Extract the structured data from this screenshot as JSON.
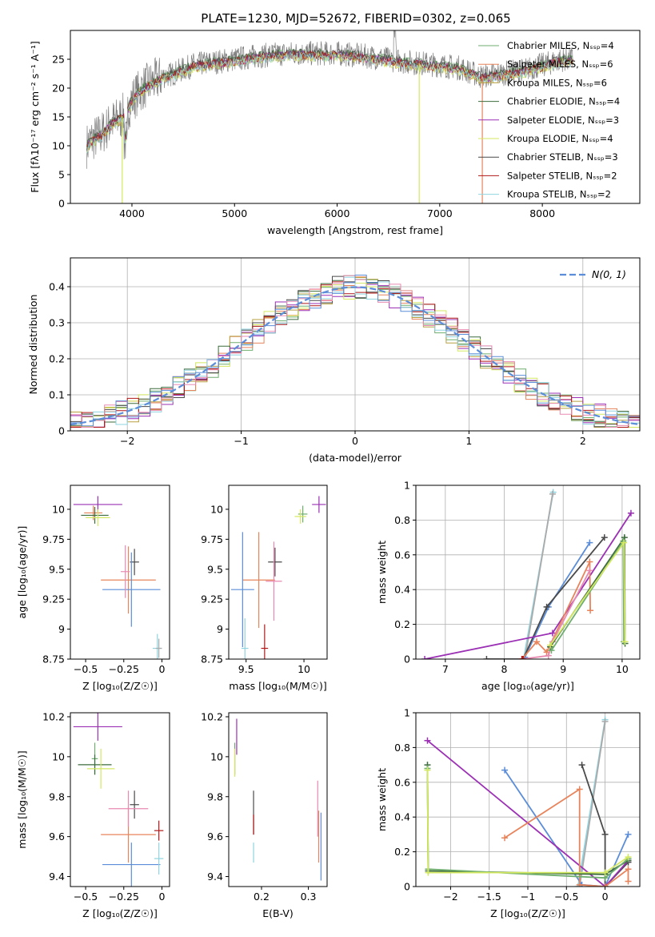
{
  "figure": {
    "title": "PLATE=1230, MJD=52672, FIBERID=0302, z=0.065"
  },
  "colors": {
    "Chabrier MILES": "#6fae6f",
    "Salpeter MILES": "#e8845c",
    "Kroupa MILES": "#b8a040",
    "Chabrier ELODIE": "#3d6b3d",
    "Salpeter ELODIE": "#9b30b5",
    "Kroupa ELODIE": "#d4e860",
    "Chabrier STELIB": "#4a4a4a",
    "Salpeter STELIB": "#b01818",
    "Kroupa STELIB": "#8fd4e0",
    "gaussian": "#5b8dd9"
  },
  "chart_data": [
    {
      "id": "spectrum",
      "type": "line",
      "xlabel": "wavelength [Angstrom, rest frame]",
      "ylabel": "Flux [fλ10⁻¹⁷ erg cm⁻² s⁻¹ A⁻¹]",
      "xlim": [
        3400,
        8950
      ],
      "ylim": [
        0,
        30
      ],
      "xticks": [
        4000,
        5000,
        6000,
        7000,
        8000
      ],
      "yticks": [
        0,
        5,
        10,
        15,
        20,
        25
      ],
      "legend_position": "top-right",
      "continuum": {
        "x": [
          3560,
          3600,
          3700,
          3800,
          3900,
          3950,
          4000,
          4100,
          4200,
          4300,
          4400,
          4600,
          4800,
          5000,
          5200,
          5500,
          5800,
          6000,
          6300,
          6500,
          6700,
          7000,
          7200,
          7400,
          7600,
          7800,
          8000,
          8200,
          8300
        ],
        "y": [
          10,
          11,
          12,
          14,
          15,
          16,
          18,
          20,
          21,
          22,
          22.5,
          24,
          24.5,
          25,
          25.5,
          26,
          26,
          26,
          25.5,
          25,
          24.5,
          24,
          23.5,
          22,
          22.5,
          23,
          24,
          25,
          25
        ]
      },
      "series": [
        {
          "name": "Chabrier MILES, N_SSP=4",
          "color": "#6fae6f"
        },
        {
          "name": "Salpeter MILES, N_SSP=6",
          "color": "#e8845c"
        },
        {
          "name": "Kroupa MILES, N_SSP=6",
          "color": "#b8a040"
        },
        {
          "name": "Chabrier ELODIE, N_SSP=4",
          "color": "#3d6b3d"
        },
        {
          "name": "Salpeter ELODIE, N_SSP=3",
          "color": "#9b30b5"
        },
        {
          "name": "Kroupa ELODIE, N_SSP=4",
          "color": "#d4e860"
        },
        {
          "name": "Chabrier STELIB, N_SSP=3",
          "color": "#4a4a4a"
        },
        {
          "name": "Salpeter STELIB, N_SSP=2",
          "color": "#b01818"
        },
        {
          "name": "Kroupa STELIB, N_SSP=2",
          "color": "#8fd4e0"
        }
      ],
      "dropouts": [
        {
          "x": 3905,
          "color": "#d4e860"
        },
        {
          "x": 6800,
          "color": "#d4e860"
        },
        {
          "x": 7415,
          "color": "#e8845c"
        }
      ]
    },
    {
      "id": "residuals",
      "type": "line",
      "xlabel": "(data-model)/error",
      "ylabel": "Normed distribution",
      "xlim": [
        -2.5,
        2.5
      ],
      "ylim": [
        0,
        0.48
      ],
      "xticks": [
        -2,
        -1,
        0,
        1,
        2
      ],
      "yticks": [
        0.0,
        0.1,
        0.2,
        0.3,
        0.4
      ],
      "grid": true,
      "legend": "N(0, 1)",
      "legend_position": "top-right",
      "bin_width": 0.1,
      "bin_start": -2.5,
      "base_heights": [
        0.02,
        0.025,
        0.03,
        0.035,
        0.045,
        0.05,
        0.055,
        0.06,
        0.07,
        0.08,
        0.09,
        0.1,
        0.11,
        0.125,
        0.14,
        0.155,
        0.17,
        0.185,
        0.2,
        0.225,
        0.25,
        0.27,
        0.29,
        0.31,
        0.33,
        0.35,
        0.36,
        0.37,
        0.38,
        0.39,
        0.395,
        0.4,
        0.4,
        0.4,
        0.398,
        0.395,
        0.39,
        0.385,
        0.375,
        0.365,
        0.35,
        0.335,
        0.32,
        0.3,
        0.28,
        0.26,
        0.24,
        0.22,
        0.2,
        0.18,
        0.165,
        0.15,
        0.135,
        0.12,
        0.105,
        0.09,
        0.08,
        0.07,
        0.06,
        0.05,
        0.045,
        0.04,
        0.035,
        0.03,
        0.027,
        0.024,
        0.022,
        0.02,
        0.018,
        0.016,
        0.015,
        0.014,
        0.012,
        0.012,
        0.012,
        0.012,
        0.012,
        0.012,
        0.012,
        0.012,
        0.012,
        0.012,
        0.012,
        0.012,
        0.012,
        0.012,
        0.012,
        0.012,
        0.012,
        0.012,
        0.012,
        0.012,
        0.012,
        0.012,
        0.012,
        0.012,
        0.012,
        0.012,
        0.012,
        0.012
      ]
    },
    {
      "id": "age_vs_Z",
      "type": "scatter",
      "xlabel": "Z [log₁₀(Z/Z☉)]",
      "ylabel": "age  [log₁₀(age/yr)]",
      "xlim": [
        -0.6,
        0.05
      ],
      "ylim": [
        8.75,
        10.2
      ],
      "xticks": [
        -0.5,
        -0.25,
        0.0
      ],
      "yticks": [
        8.75,
        9.0,
        9.25,
        9.5,
        9.75,
        10.0
      ],
      "points": [
        {
          "x": -0.42,
          "y": 10.04,
          "dx": 0.16,
          "dy": 0.07,
          "color": "#9b30b5"
        },
        {
          "x": -0.45,
          "y": 9.97,
          "dx": 0.06,
          "dy": 0.06,
          "color": "#e8845c"
        },
        {
          "x": -0.44,
          "y": 9.95,
          "dx": 0.09,
          "dy": 0.07,
          "color": "#3d6b3d"
        },
        {
          "x": -0.42,
          "y": 9.93,
          "dx": 0.08,
          "dy": 0.07,
          "color": "#d4e860"
        },
        {
          "x": -0.22,
          "y": 9.41,
          "dx": 0.18,
          "dy": 0.28,
          "color": "#e8845c"
        },
        {
          "x": -0.18,
          "y": 9.56,
          "dx": 0.03,
          "dy": 0.11,
          "color": "#4a4a4a"
        },
        {
          "x": -0.2,
          "y": 9.33,
          "dx": 0.19,
          "dy": 0.31,
          "color": "#5b8dd9"
        },
        {
          "x": -0.24,
          "y": 9.48,
          "dx": 0.03,
          "dy": 0.22,
          "color": "#e88ab0"
        },
        {
          "x": -0.03,
          "y": 8.84,
          "dx": 0.03,
          "dy": 0.12,
          "color": "#8fd4e0"
        },
        {
          "x": -0.02,
          "y": 8.84,
          "dx": 0.02,
          "dy": 0.08,
          "color": "#aaaaaa"
        }
      ]
    },
    {
      "id": "age_vs_mass",
      "type": "scatter",
      "xlabel": "mass [log₁₀(M/M☉)]",
      "ylabel": "",
      "xlim": [
        9.35,
        10.2
      ],
      "ylim": [
        8.75,
        10.2
      ],
      "xticks": [
        9.5,
        10.0
      ],
      "yticks": [
        8.75,
        9.0,
        9.25,
        9.5,
        9.75,
        10.0
      ],
      "points": [
        {
          "x": 10.13,
          "y": 10.04,
          "dx": 0.06,
          "dy": 0.07,
          "color": "#9b30b5"
        },
        {
          "x": 9.99,
          "y": 9.96,
          "dx": 0.04,
          "dy": 0.07,
          "color": "#6fae6f"
        },
        {
          "x": 9.97,
          "y": 9.94,
          "dx": 0.05,
          "dy": 0.06,
          "color": "#d4e860"
        },
        {
          "x": 9.61,
          "y": 9.41,
          "dx": 0.14,
          "dy": 0.4,
          "color": "#e8845c"
        },
        {
          "x": 9.75,
          "y": 9.56,
          "dx": 0.06,
          "dy": 0.12,
          "color": "#4a4a4a"
        },
        {
          "x": 9.47,
          "y": 9.33,
          "dx": 0.1,
          "dy": 0.48,
          "color": "#5b8dd9"
        },
        {
          "x": 9.74,
          "y": 9.4,
          "dx": 0.07,
          "dy": 0.33,
          "color": "#e88ab0"
        },
        {
          "x": 9.66,
          "y": 8.84,
          "dx": 0.03,
          "dy": 0.2,
          "color": "#b01818"
        },
        {
          "x": 9.49,
          "y": 8.84,
          "dx": 0.03,
          "dy": 0.25,
          "color": "#8fd4e0"
        }
      ]
    },
    {
      "id": "weight_vs_age",
      "type": "line",
      "xlabel": "age  [log₁₀(age/yr)]",
      "ylabel": "mass weight",
      "xlim": [
        6.5,
        10.3
      ],
      "ylim": [
        0,
        1.0
      ],
      "xticks": [
        7,
        8,
        9,
        10
      ],
      "yticks": [
        0.0,
        0.2,
        0.4,
        0.6,
        0.8,
        1.0
      ],
      "grid": true,
      "series": [
        {
          "color": "#8fd4e0",
          "x": [
            8.33,
            8.83
          ],
          "y": [
            0.0,
            0.96
          ]
        },
        {
          "color": "#aaaaaa",
          "x": [
            8.35,
            8.82
          ],
          "y": [
            0.0,
            0.95
          ]
        },
        {
          "color": "#5b8dd9",
          "x": [
            8.35,
            8.75,
            9.45
          ],
          "y": [
            0.01,
            0.3,
            0.67
          ]
        },
        {
          "color": "#4a4a4a",
          "x": [
            7.7,
            8.32,
            8.72,
            9.7
          ],
          "y": [
            0.0,
            0.0,
            0.3,
            0.7
          ]
        },
        {
          "color": "#9b30b5",
          "x": [
            6.65,
            8.82,
            10.15
          ],
          "y": [
            0.0,
            0.15,
            0.84
          ]
        },
        {
          "color": "#e8845c",
          "x": [
            8.3,
            8.55,
            8.72,
            9.45,
            9.46
          ],
          "y": [
            0.0,
            0.1,
            0.04,
            0.56,
            0.28
          ]
        },
        {
          "color": "#e88ab0",
          "x": [
            8.3,
            8.75,
            8.82,
            9.45
          ],
          "y": [
            0.0,
            0.02,
            0.1,
            0.51
          ]
        },
        {
          "color": "#3d6b3d",
          "x": [
            8.78,
            10.04,
            10.05
          ],
          "y": [
            0.07,
            0.7,
            0.09
          ]
        },
        {
          "color": "#6fae6f",
          "x": [
            8.8,
            10.02,
            10.03
          ],
          "y": [
            0.05,
            0.68,
            0.1
          ]
        },
        {
          "color": "#d4e860",
          "x": [
            8.78,
            10.03,
            10.05
          ],
          "y": [
            0.08,
            0.67,
            0.1
          ]
        },
        {
          "color": "#b01818",
          "x": [
            8.3,
            8.32
          ],
          "y": [
            0.0,
            0.0
          ]
        }
      ]
    },
    {
      "id": "mass_vs_Z",
      "type": "scatter",
      "xlabel": "Z [log₁₀(Z/Z☉)]",
      "ylabel": "mass [log₁₀(M/M☉)]",
      "xlim": [
        -0.6,
        0.05
      ],
      "ylim": [
        9.35,
        10.22
      ],
      "xticks": [
        -0.5,
        -0.25,
        0.0
      ],
      "yticks": [
        9.4,
        9.6,
        9.8,
        10.0,
        10.2
      ],
      "points": [
        {
          "x": -0.42,
          "y": 10.15,
          "dx": 0.16,
          "dy": 0.07,
          "color": "#9b30b5"
        },
        {
          "x": -0.44,
          "y": 9.99,
          "dx": 0.02,
          "dy": 0.08,
          "color": "#6fae6f"
        },
        {
          "x": -0.44,
          "y": 9.96,
          "dx": 0.11,
          "dy": 0.05,
          "color": "#3d6b3d"
        },
        {
          "x": -0.4,
          "y": 9.94,
          "dx": 0.09,
          "dy": 0.1,
          "color": "#d4e860"
        },
        {
          "x": -0.22,
          "y": 9.61,
          "dx": 0.18,
          "dy": 0.14,
          "color": "#e8845c"
        },
        {
          "x": -0.18,
          "y": 9.76,
          "dx": 0.03,
          "dy": 0.07,
          "color": "#4a4a4a"
        },
        {
          "x": -0.2,
          "y": 9.46,
          "dx": 0.19,
          "dy": 0.11,
          "color": "#5b8dd9"
        },
        {
          "x": -0.22,
          "y": 9.74,
          "dx": 0.13,
          "dy": 0.09,
          "color": "#e88ab0"
        },
        {
          "x": -0.02,
          "y": 9.63,
          "dx": 0.03,
          "dy": 0.05,
          "color": "#b01818"
        },
        {
          "x": -0.02,
          "y": 9.49,
          "dx": 0.03,
          "dy": 0.08,
          "color": "#8fd4e0"
        }
      ]
    },
    {
      "id": "mass_vs_EBV",
      "type": "scatter",
      "xlabel": "E(B-V)",
      "ylabel": "",
      "xlim": [
        0.13,
        0.34
      ],
      "ylim": [
        9.35,
        10.22
      ],
      "xticks": [
        0.2,
        0.3
      ],
      "yticks": [
        9.4,
        9.6,
        9.8,
        10.0,
        10.2
      ],
      "points": [
        {
          "x": 0.147,
          "y": 10.1,
          "dx": 0.0,
          "dy": 0.09,
          "color": "#9b30b5"
        },
        {
          "x": 0.143,
          "y": 9.99,
          "dx": 0.0,
          "dy": 0.08,
          "color": "#6fae6f"
        },
        {
          "x": 0.143,
          "y": 9.97,
          "dx": 0.0,
          "dy": 0.07,
          "color": "#d4e860"
        },
        {
          "x": 0.183,
          "y": 9.72,
          "dx": 0.0,
          "dy": 0.11,
          "color": "#4a4a4a"
        },
        {
          "x": 0.183,
          "y": 9.66,
          "dx": 0.0,
          "dy": 0.05,
          "color": "#b01818"
        },
        {
          "x": 0.183,
          "y": 9.52,
          "dx": 0.0,
          "dy": 0.05,
          "color": "#8fd4e0"
        },
        {
          "x": 0.32,
          "y": 9.74,
          "dx": 0.0,
          "dy": 0.14,
          "color": "#e88ab0"
        },
        {
          "x": 0.322,
          "y": 9.6,
          "dx": 0.0,
          "dy": 0.13,
          "color": "#e8845c"
        },
        {
          "x": 0.327,
          "y": 9.55,
          "dx": 0.0,
          "dy": 0.17,
          "color": "#5b8dd9"
        }
      ]
    },
    {
      "id": "weight_vs_Z",
      "type": "line",
      "xlabel": "Z [log₁₀(Z/Z☉)]",
      "ylabel": "mass weight",
      "xlim": [
        -2.45,
        0.45
      ],
      "ylim": [
        0,
        1.0
      ],
      "xticks": [
        -2.0,
        -1.5,
        -1.0,
        -0.5,
        0.0
      ],
      "yticks": [
        0.0,
        0.2,
        0.4,
        0.6,
        0.8,
        1.0
      ],
      "grid": true,
      "series": [
        {
          "color": "#8fd4e0",
          "x": [
            -0.35,
            0.0
          ],
          "y": [
            0.0,
            0.96
          ]
        },
        {
          "color": "#aaaaaa",
          "x": [
            -0.33,
            0.0
          ],
          "y": [
            0.0,
            0.95
          ]
        },
        {
          "color": "#5b8dd9",
          "x": [
            -1.3,
            -0.3,
            0.0,
            0.3
          ],
          "y": [
            0.67,
            0.01,
            0.0,
            0.3
          ]
        },
        {
          "color": "#4a4a4a",
          "x": [
            -0.3,
            0.0,
            0.0,
            0.3
          ],
          "y": [
            0.7,
            0.3,
            0.0,
            0.14
          ]
        },
        {
          "color": "#9b30b5",
          "x": [
            -2.3,
            0.0,
            0.3
          ],
          "y": [
            0.84,
            0.0,
            0.15
          ]
        },
        {
          "color": "#e8845c",
          "x": [
            -1.3,
            -0.33,
            -0.33,
            0.0,
            0.3,
            0.3
          ],
          "y": [
            0.28,
            0.56,
            0.01,
            0.0,
            0.1,
            0.03
          ]
        },
        {
          "color": "#3d6b3d",
          "x": [
            -2.3,
            -2.29,
            0.0,
            0.3
          ],
          "y": [
            0.7,
            0.09,
            0.07,
            0.15
          ]
        },
        {
          "color": "#6fae6f",
          "x": [
            -2.3,
            -2.29,
            0.0,
            0.3
          ],
          "y": [
            0.68,
            0.1,
            0.05,
            0.16
          ]
        },
        {
          "color": "#d4e860",
          "x": [
            -2.3,
            -2.29,
            0.0,
            0.3
          ],
          "y": [
            0.67,
            0.08,
            0.08,
            0.17
          ]
        }
      ]
    }
  ]
}
